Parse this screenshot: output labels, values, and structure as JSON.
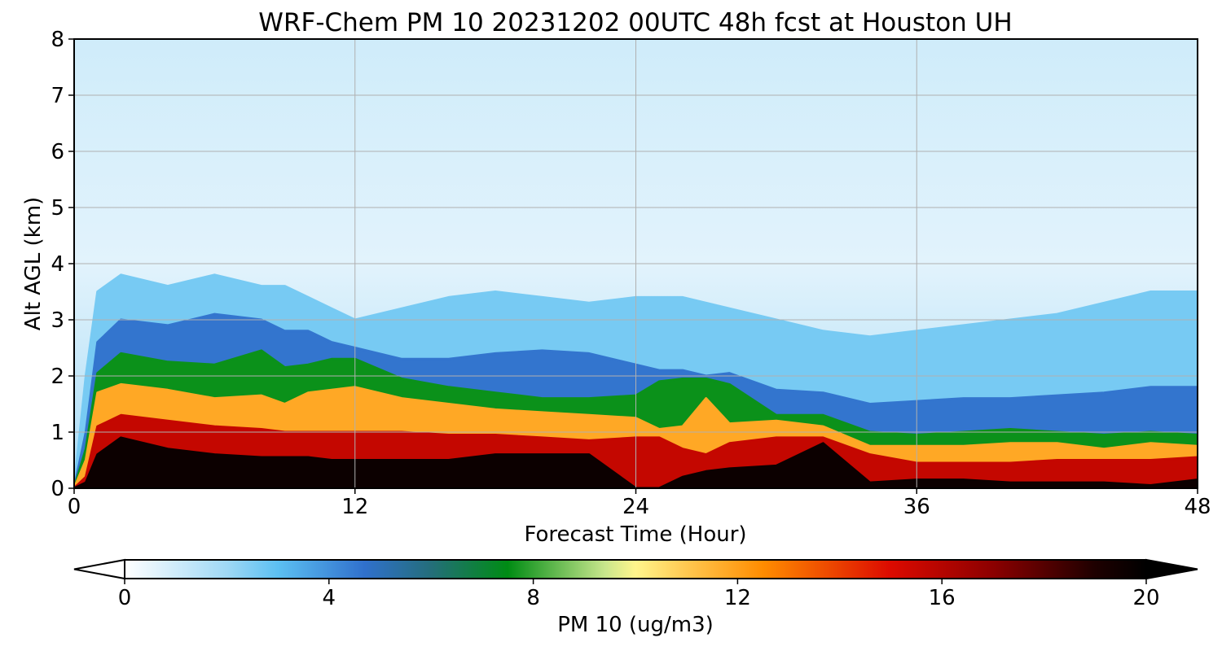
{
  "chart_data": {
    "type": "heatmap",
    "title": "WRF-Chem PM 10  20231202 00UTC 48h fcst at Houston UH",
    "xlabel": "Forecast Time (Hour)",
    "ylabel": "Alt AGL (km)",
    "xlim": [
      0,
      48
    ],
    "ylim": [
      0,
      8
    ],
    "xticks": [
      "0",
      "12",
      "24",
      "36",
      "48"
    ],
    "yticks": [
      "0",
      "1",
      "2",
      "3",
      "4",
      "5",
      "6",
      "7",
      "8"
    ],
    "grid": true,
    "colorbar": {
      "label": "PM 10  (ug/m3)",
      "range": [
        0,
        20
      ],
      "ticks": [
        "0",
        "4",
        "8",
        "12",
        "16",
        "20"
      ],
      "extend": "both",
      "colormap_stops": [
        {
          "v": 0,
          "c": "#ffffff"
        },
        {
          "v": 2,
          "c": "#9fd8f5"
        },
        {
          "v": 3,
          "c": "#5cc0f2"
        },
        {
          "v": 4.7,
          "c": "#3070cc"
        },
        {
          "v": 6,
          "c": "#246e7a"
        },
        {
          "v": 7.5,
          "c": "#008c14"
        },
        {
          "v": 9.4,
          "c": "#c8e68c"
        },
        {
          "v": 10,
          "c": "#fff58c"
        },
        {
          "v": 11,
          "c": "#ffc850"
        },
        {
          "v": 12.5,
          "c": "#ff8c00"
        },
        {
          "v": 15,
          "c": "#dc0a00"
        },
        {
          "v": 17,
          "c": "#8c0000"
        },
        {
          "v": 19,
          "c": "#1e0000"
        },
        {
          "v": 20,
          "c": "#000000"
        }
      ]
    },
    "x_hours": [
      0,
      0.5,
      1,
      2,
      4,
      6,
      8,
      9,
      10,
      11,
      12,
      14,
      16,
      18,
      20,
      22,
      24,
      25,
      26,
      27,
      28,
      30,
      32,
      34,
      36,
      38,
      40,
      42,
      44,
      46,
      48
    ],
    "boundaries_km": {
      "dark_top": [
        0,
        0.1,
        0.6,
        0.9,
        0.7,
        0.6,
        0.55,
        0.55,
        0.55,
        0.5,
        0.5,
        0.5,
        0.5,
        0.6,
        0.6,
        0.6,
        0.0,
        0.0,
        0.2,
        0.3,
        0.35,
        0.4,
        0.8,
        0.1,
        0.15,
        0.15,
        0.1,
        0.1,
        0.1,
        0.05,
        0.15
      ],
      "red_top": [
        0,
        0.2,
        1.1,
        1.3,
        1.2,
        1.1,
        1.05,
        1.0,
        1.0,
        1.0,
        1.0,
        1.0,
        0.95,
        0.95,
        0.9,
        0.85,
        0.9,
        0.9,
        0.7,
        0.6,
        0.8,
        0.9,
        0.9,
        0.6,
        0.45,
        0.45,
        0.45,
        0.5,
        0.5,
        0.5,
        0.55
      ],
      "orange_top": [
        0,
        0.5,
        1.7,
        1.85,
        1.75,
        1.6,
        1.65,
        1.5,
        1.7,
        1.75,
        1.8,
        1.6,
        1.5,
        1.4,
        1.35,
        1.3,
        1.25,
        1.05,
        1.1,
        1.6,
        1.15,
        1.2,
        1.1,
        0.75,
        0.75,
        0.75,
        0.8,
        0.8,
        0.7,
        0.8,
        0.75
      ],
      "green_top": [
        0,
        0.7,
        2.05,
        2.4,
        2.25,
        2.2,
        2.45,
        2.15,
        2.2,
        2.3,
        2.3,
        1.95,
        1.8,
        1.7,
        1.6,
        1.6,
        1.65,
        1.9,
        1.95,
        1.95,
        1.85,
        1.3,
        1.3,
        1.0,
        0.95,
        1.0,
        1.05,
        1.0,
        0.95,
        1.0,
        0.95
      ],
      "blue_top": [
        0,
        1.0,
        2.6,
        3.0,
        2.9,
        3.1,
        3.0,
        2.8,
        2.8,
        2.6,
        2.5,
        2.3,
        2.3,
        2.4,
        2.45,
        2.4,
        2.2,
        2.1,
        2.1,
        2.0,
        2.05,
        1.75,
        1.7,
        1.5,
        1.55,
        1.6,
        1.6,
        1.65,
        1.7,
        1.8,
        1.8
      ],
      "light_top": [
        0,
        2.0,
        3.5,
        3.8,
        3.6,
        3.8,
        3.6,
        3.6,
        3.4,
        3.2,
        3.0,
        3.2,
        3.4,
        3.5,
        3.4,
        3.3,
        3.4,
        3.4,
        3.4,
        3.3,
        3.2,
        3.0,
        2.8,
        2.7,
        2.8,
        2.9,
        3.0,
        3.1,
        3.3,
        3.5,
        3.5
      ]
    }
  }
}
